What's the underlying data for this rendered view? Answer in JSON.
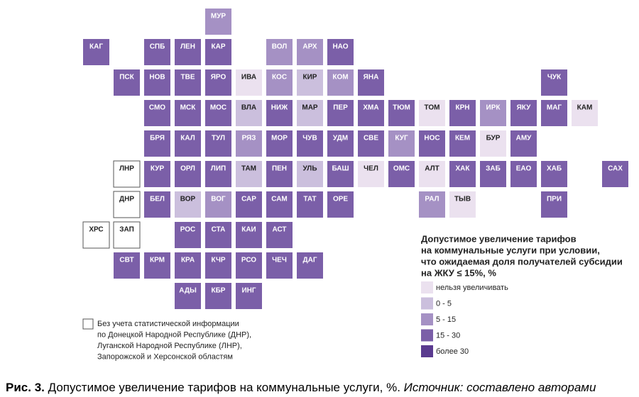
{
  "map": {
    "levels": [
      "#ebe1ef",
      "#cbbfdd",
      "#a591c4",
      "#7b5fa8",
      "#5a3a8f"
    ],
    "rows": [
      [
        null,
        null,
        null,
        null,
        {
          "label": "МУР",
          "level": 2
        }
      ],
      [
        {
          "label": "КАГ",
          "level": 3
        },
        null,
        {
          "label": "СПБ",
          "level": 3
        },
        {
          "label": "ЛЕН",
          "level": 3
        },
        {
          "label": "КАР",
          "level": 3
        },
        null,
        {
          "label": "ВОЛ",
          "level": 2
        },
        {
          "label": "АРХ",
          "level": 2
        },
        {
          "label": "НАО",
          "level": 3
        }
      ],
      [
        null,
        {
          "label": "ПСК",
          "level": 3
        },
        {
          "label": "НОВ",
          "level": 3
        },
        {
          "label": "ТВЕ",
          "level": 3
        },
        {
          "label": "ЯРО",
          "level": 3
        },
        {
          "label": "ИВА",
          "level": 0
        },
        {
          "label": "КОС",
          "level": 2
        },
        {
          "label": "КИР",
          "level": 1
        },
        {
          "label": "КОМ",
          "level": 2
        },
        {
          "label": "ЯНА",
          "level": 3
        },
        null,
        null,
        null,
        null,
        null,
        {
          "label": "ЧУК",
          "level": 3
        }
      ],
      [
        null,
        null,
        {
          "label": "СМО",
          "level": 3
        },
        {
          "label": "МСК",
          "level": 3
        },
        {
          "label": "МОС",
          "level": 3
        },
        {
          "label": "ВЛА",
          "level": 1
        },
        {
          "label": "НИЖ",
          "level": 3
        },
        {
          "label": "МАР",
          "level": 1
        },
        {
          "label": "ПЕР",
          "level": 3
        },
        {
          "label": "ХМА",
          "level": 3
        },
        {
          "label": "ТЮМ",
          "level": 3
        },
        {
          "label": "ТОМ",
          "level": 0
        },
        {
          "label": "КРН",
          "level": 3
        },
        {
          "label": "ИРК",
          "level": 2
        },
        {
          "label": "ЯКУ",
          "level": 3
        },
        {
          "label": "МАГ",
          "level": 3
        },
        {
          "label": "КАМ",
          "level": 0
        }
      ],
      [
        null,
        null,
        {
          "label": "БРЯ",
          "level": 3
        },
        {
          "label": "КАЛ",
          "level": 3
        },
        {
          "label": "ТУЛ",
          "level": 3
        },
        {
          "label": "РЯЗ",
          "level": 2
        },
        {
          "label": "МОР",
          "level": 3
        },
        {
          "label": "ЧУВ",
          "level": 3
        },
        {
          "label": "УДМ",
          "level": 3
        },
        {
          "label": "СВЕ",
          "level": 3
        },
        {
          "label": "КУГ",
          "level": 2
        },
        {
          "label": "НОС",
          "level": 3
        },
        {
          "label": "КЕМ",
          "level": 3
        },
        {
          "label": "БУР",
          "level": 0
        },
        {
          "label": "АМУ",
          "level": 3
        }
      ],
      [
        null,
        {
          "label": "ЛНР",
          "level": null
        },
        {
          "label": "КУР",
          "level": 3
        },
        {
          "label": "ОРЛ",
          "level": 3
        },
        {
          "label": "ЛИП",
          "level": 3
        },
        {
          "label": "ТАМ",
          "level": 1
        },
        {
          "label": "ПЕН",
          "level": 3
        },
        {
          "label": "УЛЬ",
          "level": 1
        },
        {
          "label": "БАШ",
          "level": 3
        },
        {
          "label": "ЧЕЛ",
          "level": 0
        },
        {
          "label": "ОМС",
          "level": 3
        },
        {
          "label": "АЛТ",
          "level": 0
        },
        {
          "label": "ХАК",
          "level": 3
        },
        {
          "label": "ЗАБ",
          "level": 3
        },
        {
          "label": "ЕАО",
          "level": 3
        },
        {
          "label": "ХАБ",
          "level": 3
        },
        null,
        {
          "label": "САХ",
          "level": 3
        }
      ],
      [
        null,
        {
          "label": "ДНР",
          "level": null
        },
        {
          "label": "БЕЛ",
          "level": 3
        },
        {
          "label": "ВОР",
          "level": 1
        },
        {
          "label": "ВОГ",
          "level": 2
        },
        {
          "label": "САР",
          "level": 3
        },
        {
          "label": "САМ",
          "level": 3
        },
        {
          "label": "ТАТ",
          "level": 3
        },
        {
          "label": "ОРЕ",
          "level": 3
        },
        null,
        null,
        {
          "label": "РАЛ",
          "level": 2
        },
        {
          "label": "ТЫВ",
          "level": 0
        },
        null,
        null,
        {
          "label": "ПРИ",
          "level": 3
        }
      ],
      [
        {
          "label": "ХРС",
          "level": null
        },
        {
          "label": "ЗАП",
          "level": null
        },
        null,
        {
          "label": "РОС",
          "level": 3
        },
        {
          "label": "СТА",
          "level": 3
        },
        {
          "label": "КАИ",
          "level": 3
        },
        {
          "label": "АСТ",
          "level": 3
        }
      ],
      [
        null,
        {
          "label": "СВТ",
          "level": 3
        },
        {
          "label": "КРМ",
          "level": 3
        },
        {
          "label": "КРА",
          "level": 3
        },
        {
          "label": "КЧР",
          "level": 3
        },
        {
          "label": "РСО",
          "level": 3
        },
        {
          "label": "ЧЕЧ",
          "level": 3
        },
        {
          "label": "ДАГ",
          "level": 3
        }
      ],
      [
        null,
        null,
        null,
        {
          "label": "АДЫ",
          "level": 3
        },
        {
          "label": "КБР",
          "level": 3
        },
        {
          "label": "ИНГ",
          "level": 3
        }
      ]
    ]
  },
  "legend": {
    "title": [
      "Допустимое увеличение тарифов",
      "на коммунальные услуги при условии,",
      "что ожидаемая доля получателей субсидии",
      "на ЖКУ ≤ 15%, %"
    ],
    "items": [
      "нельзя увеличивать",
      "0 - 5",
      "5 - 15",
      "15 - 30",
      "более 30"
    ]
  },
  "note": [
    "Без учета статистической информации",
    "по Донецкой Народной Республике (ДНР),",
    "Луганской Народной Республике (ЛНР),",
    "Запорожской и Херсонской областям"
  ],
  "caption": {
    "label": "Рис. 3.",
    "text": "Допустимое увеличение тарифов на коммунальные услуги, %.",
    "source": "Источник: составлено авторами"
  }
}
